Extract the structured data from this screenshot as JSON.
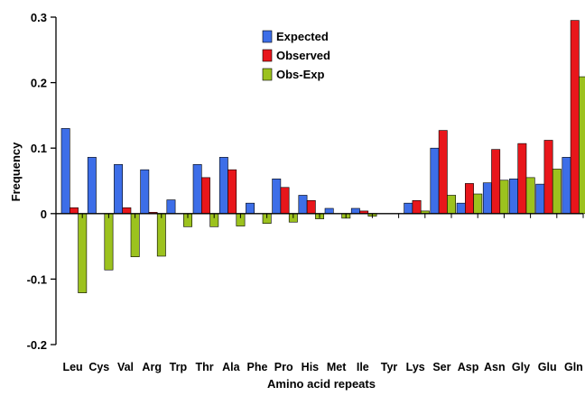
{
  "chart_data": {
    "type": "bar",
    "title": "",
    "xlabel": "Amino acid repeats",
    "ylabel": "Frequency",
    "ylim": [
      -0.2,
      0.3
    ],
    "yticks": [
      -0.2,
      -0.1,
      0,
      0.1,
      0.2,
      0.3
    ],
    "ytick_labels": [
      "-0.2",
      "-0.1",
      "0",
      "0.1",
      "0.2",
      "0.3"
    ],
    "grid": false,
    "legend_position": "top-center",
    "categories": [
      "Leu",
      "Cys",
      "Val",
      "Arg",
      "Trp",
      "Thr",
      "Ala",
      "Phe",
      "Pro",
      "His",
      "Met",
      "Ile",
      "Tyr",
      "Lys",
      "Ser",
      "Asp",
      "Asn",
      "Gly",
      "Glu",
      "Gln"
    ],
    "series": [
      {
        "name": "Expected",
        "color": "#3d6ee8",
        "values": [
          0.13,
          0.086,
          0.075,
          0.067,
          0.021,
          0.075,
          0.086,
          0.016,
          0.053,
          0.028,
          0.008,
          0.008,
          0.0,
          0.016,
          0.1,
          0.016,
          0.047,
          0.053,
          0.045,
          0.086
        ]
      },
      {
        "name": "Observed",
        "color": "#e8161b",
        "values": [
          0.009,
          0.0,
          0.009,
          0.002,
          0.0,
          0.055,
          0.067,
          0.0,
          0.04,
          0.02,
          0.0,
          0.004,
          0.0,
          0.02,
          0.127,
          0.046,
          0.098,
          0.107,
          0.112,
          0.295
        ]
      },
      {
        "name": "Obs-Exp",
        "color": "#9cc21e",
        "values": [
          -0.121,
          -0.086,
          -0.066,
          -0.065,
          -0.02,
          -0.02,
          -0.019,
          -0.015,
          -0.013,
          -0.008,
          -0.007,
          -0.004,
          0.0,
          0.004,
          0.028,
          0.03,
          0.051,
          0.055,
          0.068,
          0.209
        ]
      }
    ]
  }
}
